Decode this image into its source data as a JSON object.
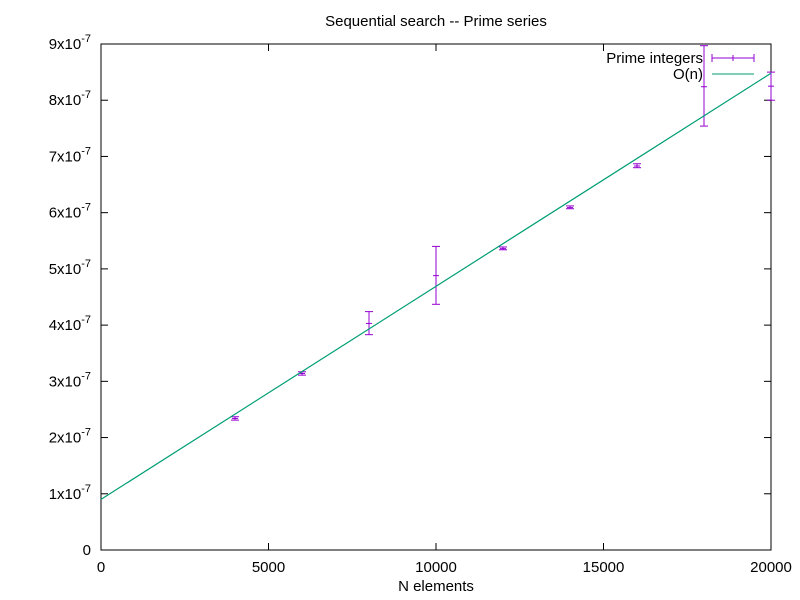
{
  "chart_data": {
    "type": "scatter",
    "title": "Sequential search -- Prime series",
    "xlabel": "N elements",
    "ylabel": "",
    "xlim": [
      0,
      20000
    ],
    "ylim": [
      0,
      9e-07
    ],
    "x_ticks": [
      0,
      5000,
      10000,
      15000,
      20000
    ],
    "x_tick_labels": [
      "0",
      "5000",
      "10000",
      "15000",
      "20000"
    ],
    "y_ticks": [
      0,
      1e-07,
      2e-07,
      3e-07,
      4e-07,
      5e-07,
      6e-07,
      7e-07,
      8e-07,
      9e-07
    ],
    "y_tick_labels": [
      {
        "mantissa": "0",
        "exp": ""
      },
      {
        "mantissa": "1x10",
        "exp": "-7"
      },
      {
        "mantissa": "2x10",
        "exp": "-7"
      },
      {
        "mantissa": "3x10",
        "exp": "-7"
      },
      {
        "mantissa": "4x10",
        "exp": "-7"
      },
      {
        "mantissa": "5x10",
        "exp": "-7"
      },
      {
        "mantissa": "6x10",
        "exp": "-7"
      },
      {
        "mantissa": "7x10",
        "exp": "-7"
      },
      {
        "mantissa": "8x10",
        "exp": "-7"
      },
      {
        "mantissa": "9x10",
        "exp": "-7"
      }
    ],
    "grid": false,
    "legend_position": "top-right",
    "series": [
      {
        "name": "Prime integers",
        "type": "errorbars",
        "color": "#9400d3",
        "points": [
          {
            "x": 4000,
            "y": 2.34e-07,
            "ylow": 2.31e-07,
            "yhigh": 2.37e-07
          },
          {
            "x": 6000,
            "y": 3.14e-07,
            "ylow": 3.11e-07,
            "yhigh": 3.17e-07
          },
          {
            "x": 8000,
            "y": 4.03e-07,
            "ylow": 3.83e-07,
            "yhigh": 4.24e-07
          },
          {
            "x": 10000,
            "y": 4.88e-07,
            "ylow": 4.37e-07,
            "yhigh": 5.4e-07
          },
          {
            "x": 12000,
            "y": 5.36e-07,
            "ylow": 5.34e-07,
            "yhigh": 5.39e-07
          },
          {
            "x": 14000,
            "y": 6.09e-07,
            "ylow": 6.07e-07,
            "yhigh": 6.12e-07
          },
          {
            "x": 16000,
            "y": 6.83e-07,
            "ylow": 6.8e-07,
            "yhigh": 6.87e-07
          },
          {
            "x": 18000,
            "y": 8.24e-07,
            "ylow": 7.54e-07,
            "yhigh": 8.97e-07
          },
          {
            "x": 20000,
            "y": 8.25e-07,
            "ylow": 8e-07,
            "yhigh": 8.5e-07
          }
        ]
      },
      {
        "name": "O(n)",
        "type": "line",
        "color": "#009e73",
        "x": [
          0,
          20000
        ],
        "y": [
          9e-08,
          8.48e-07
        ]
      }
    ]
  }
}
